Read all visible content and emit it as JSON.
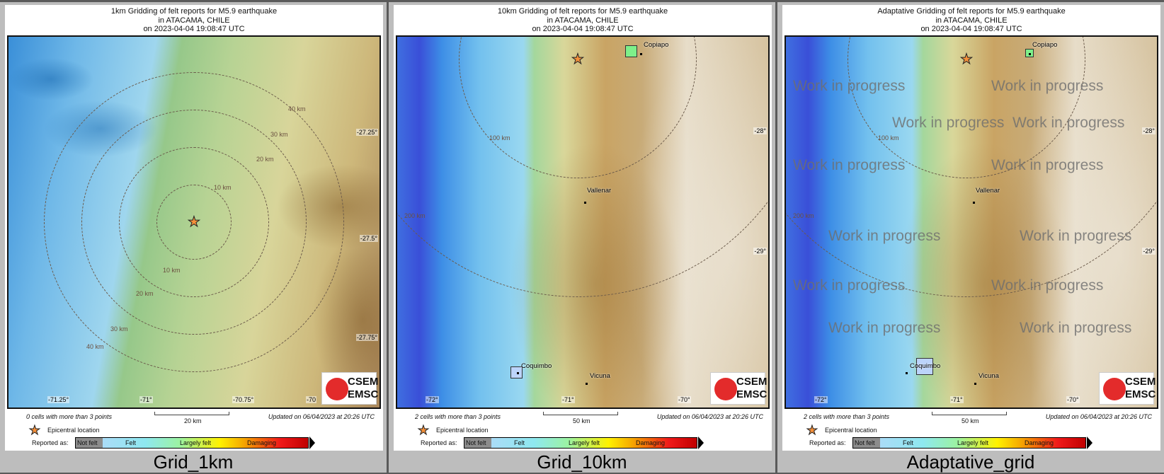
{
  "event": {
    "line2": "in ATACAMA, CHILE",
    "line3": "on  2023-04-04 19:08:47 UTC"
  },
  "footer": {
    "updated": "Updated on 06/04/2023 at 20:26 UTC",
    "epicentral": "Epicentral location",
    "reported_as": "Reported as:"
  },
  "legend": {
    "not_felt": "Not felt",
    "felt": "Felt",
    "largely_felt": "Largely felt",
    "damaging": "Damaging",
    "colors": {
      "not_felt": "#8c8c8c",
      "felt": "#bcd4fb",
      "largely_felt": "#fff200",
      "damaging": "#f01a1a"
    }
  },
  "logo": {
    "line1": "CSEM",
    "line2": "EMSC"
  },
  "watermark": "Work in progress",
  "panels": [
    {
      "title": "1km Gridding of felt reports for M5.9 earthquake",
      "cells_note": "0 cells with more than 3 points",
      "scale": "20 km",
      "label": "Grid_1km",
      "lon_ticks": [
        "-71.25°",
        "-71°",
        "-70.75°",
        "-70"
      ],
      "lat_ticks": [
        "-27.25°",
        "-27.5°",
        "-27.75°"
      ],
      "rings": [
        "10 km",
        "20 km",
        "30 km",
        "40 km"
      ],
      "cities": []
    },
    {
      "title": "10km Gridding of felt reports for M5.9 earthquake",
      "cells_note": "2 cells with more than 3 points",
      "scale": "50 km",
      "label": "Grid_10km",
      "lon_ticks": [
        "-72°",
        "-71°",
        "-70°"
      ],
      "lat_ticks": [
        "-28°",
        "-29°"
      ],
      "rings": [
        "100 km",
        "200 km"
      ],
      "cities": [
        "Copiapo",
        "Vallenar",
        "Coquimbo",
        "Vicuna"
      ]
    },
    {
      "title": "Adaptative Gridding of felt reports for M5.9 earthquake",
      "cells_note": "2 cells with more than 3 points",
      "scale": "50 km",
      "label": "Adaptative_grid",
      "lon_ticks": [
        "-72°",
        "-71°",
        "-70°"
      ],
      "lat_ticks": [
        "-28°",
        "-29°"
      ],
      "rings": [
        "100 km",
        "200 km"
      ],
      "cities": [
        "Copiapo",
        "Vallenar",
        "Coquimbo",
        "Vicuna"
      ]
    }
  ]
}
